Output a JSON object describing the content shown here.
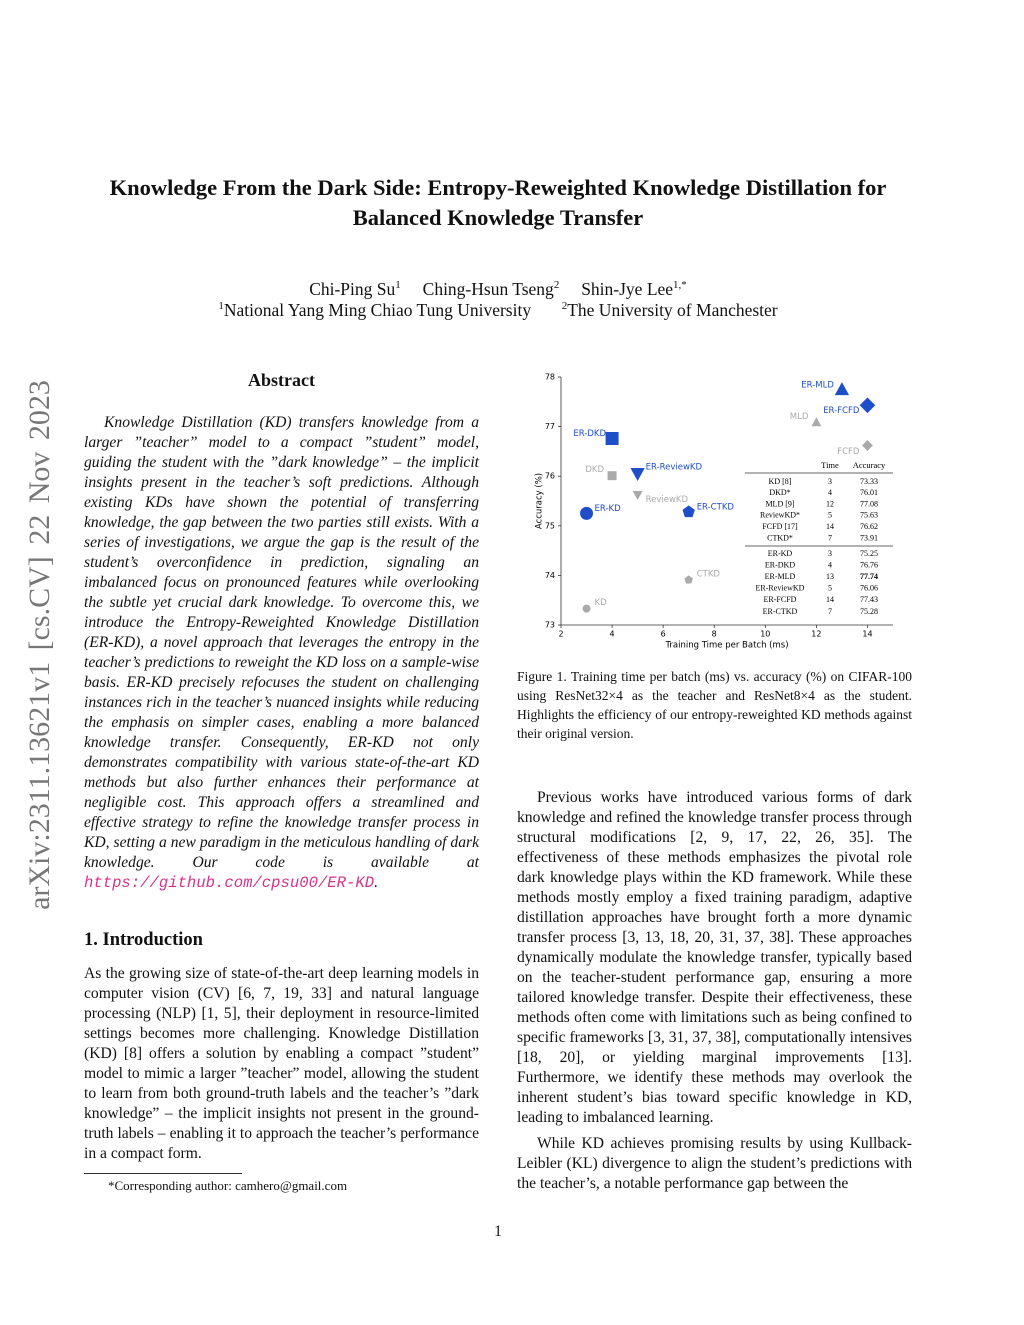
{
  "sidebar": "arXiv:2311.13621v1  [cs.CV]  22 Nov 2023",
  "title": "Knowledge From the Dark Side: Entropy-Reweighted Knowledge Distillation for Balanced Knowledge Transfer",
  "authors": [
    {
      "name": "Chi-Ping Su",
      "sup": "1"
    },
    {
      "name": "Ching-Hsun Tseng",
      "sup": "2"
    },
    {
      "name": "Shin-Jye Lee",
      "sup": "1,*"
    }
  ],
  "affiliations": [
    {
      "sup": "1",
      "name": "National Yang Ming Chiao Tung University"
    },
    {
      "sup": "2",
      "name": "The University of Manchester"
    }
  ],
  "abstract": {
    "heading": "Abstract",
    "text": "Knowledge Distillation (KD) transfers knowledge from a larger ”teacher” model to a compact ”student” model, guiding the student with the ”dark knowledge” – the implicit insights present in the teacher’s soft predictions. Although existing KDs have shown the potential of transferring knowledge, the gap between the two parties still exists. With a series of investigations, we argue the gap is the result of the student’s overconfidence in prediction, signaling an imbalanced focus on pronounced features while overlooking the subtle yet crucial dark knowledge. To overcome this, we introduce the Entropy-Reweighted Knowledge Distillation (ER-KD), a novel approach that leverages the entropy in the teacher’s predictions to reweight the KD loss on a sample-wise basis. ER-KD precisely refocuses the student on challenging instances rich in the teacher’s nuanced insights while reducing the emphasis on simpler cases, enabling a more balanced knowledge transfer. Consequently, ER-KD not only demonstrates compatibility with various state-of-the-art KD methods but also further enhances their performance at negligible cost. This approach offers a streamlined and effective strategy to refine the knowledge transfer process in KD, setting a new paradigm in the meticulous handling of dark knowledge. Our code is available at",
    "url": "https://github.com/cpsu00/ER-KD",
    "url_suffix": "."
  },
  "introduction": {
    "heading": "1. Introduction",
    "paragraphs": [
      "As the growing size of state-of-the-art deep learning models in computer vision (CV) [6, 7, 19, 33] and natural language processing (NLP) [1, 5], their deployment in resource-limited settings becomes more challenging. Knowledge Distillation (KD) [8] offers a solution by enabling a compact ”student” model to mimic a larger ”teacher” model, allowing the student to learn from both ground-truth labels and the teacher’s ”dark knowledge” – the implicit insights not present in the ground-truth labels – enabling it to approach the teacher’s performance in a compact form."
    ]
  },
  "footnote": "*Corresponding author: camhero@gmail.com",
  "right_paragraphs": [
    "Previous works have introduced various forms of dark knowledge and refined the knowledge transfer process through structural modifications [2, 9, 17, 22, 26, 35]. The effectiveness of these methods emphasizes the pivotal role dark knowledge plays within the KD framework. While these methods mostly employ a fixed training paradigm, adaptive distillation approaches have brought forth a more dynamic transfer process [3, 13, 18, 20, 31, 37, 38]. These approaches dynamically modulate the knowledge transfer, typically based on the teacher-student performance gap, ensuring a more tailored knowledge transfer. Despite their effectiveness, these methods often come with limitations such as being confined to specific frameworks [3, 31, 37, 38], computationally intensives [18, 20], or yielding marginal improvements [13]. Furthermore, we identify these methods may overlook the inherent student’s bias toward specific knowledge in KD, leading to imbalanced learning.",
    "While KD achieves promising results by using Kullback-Leibler (KL) divergence to align the student’s predictions with the teacher’s, a notable performance gap between the"
  ],
  "figure_caption": "Figure 1.  Training time per batch (ms) vs. accuracy (%) on CIFAR-100 using ResNet32×4 as the teacher and ResNet8×4 as the student. Highlights the efficiency of our entropy-reweighted KD methods against their original version.",
  "page_number": "1",
  "chart_data": {
    "type": "scatter",
    "x_label": "Training Time per Batch (ms)",
    "y_label": "Accuracy (%)",
    "xlim": [
      2,
      15
    ],
    "xticks": [
      2,
      4,
      6,
      8,
      10,
      12,
      14
    ],
    "ylim": [
      73,
      78
    ],
    "yticks": [
      73,
      74,
      75,
      76,
      77,
      78
    ],
    "points": [
      {
        "label": "KD",
        "x": 3,
        "y": 73.33,
        "marker": "circle",
        "color": "#aaaaaa"
      },
      {
        "label": "DKD",
        "x": 4,
        "y": 76.01,
        "marker": "square",
        "color": "#aaaaaa"
      },
      {
        "label": "MLD",
        "x": 12,
        "y": 77.08,
        "marker": "triangle-up",
        "color": "#aaaaaa"
      },
      {
        "label": "ReviewKD",
        "x": 5,
        "y": 75.63,
        "marker": "triangle-down",
        "color": "#aaaaaa"
      },
      {
        "label": "FCFD",
        "x": 14,
        "y": 76.62,
        "marker": "diamond",
        "color": "#aaaaaa"
      },
      {
        "label": "CTKD",
        "x": 7,
        "y": 73.91,
        "marker": "pentagon",
        "color": "#aaaaaa"
      },
      {
        "label": "ER-KD",
        "x": 3,
        "y": 75.25,
        "marker": "circle",
        "color": "#1f4fc8"
      },
      {
        "label": "ER-DKD",
        "x": 4,
        "y": 76.76,
        "marker": "square",
        "color": "#1f4fc8"
      },
      {
        "label": "ER-MLD",
        "x": 13,
        "y": 77.74,
        "marker": "triangle-up",
        "color": "#1f4fc8"
      },
      {
        "label": "ER-ReviewKD",
        "x": 5,
        "y": 76.06,
        "marker": "triangle-down",
        "color": "#1f4fc8"
      },
      {
        "label": "ER-FCFD",
        "x": 14,
        "y": 77.43,
        "marker": "diamond",
        "color": "#1f4fc8"
      },
      {
        "label": "ER-CTKD",
        "x": 7,
        "y": 75.28,
        "marker": "pentagon",
        "color": "#1f4fc8"
      }
    ],
    "table": {
      "columns": [
        "Time",
        "Accuracy"
      ],
      "rows": [
        [
          "KD [8]",
          3,
          73.33
        ],
        [
          "DKD*",
          4,
          76.01
        ],
        [
          "MLD [9]",
          12,
          77.08
        ],
        [
          "ReviewKD*",
          5,
          75.63
        ],
        [
          "FCFD [17]",
          14,
          76.62
        ],
        [
          "CTKD*",
          7,
          73.91
        ],
        [
          "ER-KD",
          3,
          75.25
        ],
        [
          "ER-DKD",
          4,
          76.76
        ],
        [
          "ER-MLD",
          13,
          77.74
        ],
        [
          "ER-ReviewKD",
          5,
          76.06
        ],
        [
          "ER-FCFD",
          14,
          77.43
        ],
        [
          "ER-CTKD",
          7,
          75.28
        ]
      ]
    }
  }
}
